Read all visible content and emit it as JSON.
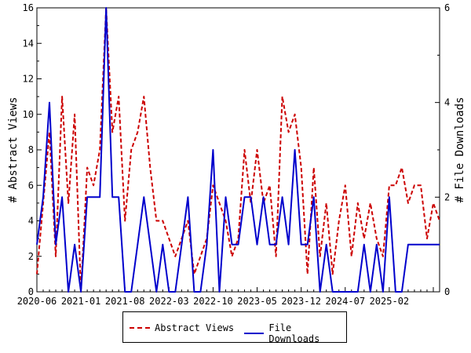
{
  "chart_data": {
    "type": "line",
    "x_tick_labels": [
      "2020-06",
      "2021-01",
      "2021-08",
      "2022-03",
      "2022-10",
      "2023-05",
      "2023-12",
      "2024-07",
      "2025-02"
    ],
    "x_count": 65,
    "y_left": {
      "label": "# Abstract Views",
      "lim": [
        0,
        16
      ],
      "ticks": [
        0,
        2,
        4,
        6,
        8,
        10,
        12,
        14,
        16
      ]
    },
    "y_right": {
      "label": "# File Downloads",
      "lim": [
        0,
        6
      ],
      "ticks": [
        0,
        2,
        4,
        6
      ]
    },
    "series": [
      {
        "name": "Abstract Views",
        "axis": "left",
        "color": "#cc0000",
        "dash": "dashed",
        "values": [
          1,
          5,
          9,
          2,
          11,
          5,
          10,
          0,
          7,
          6,
          8,
          16,
          9,
          11,
          4,
          8,
          9,
          11,
          7,
          4,
          4,
          3,
          2,
          3,
          4,
          1,
          2,
          3,
          6,
          5,
          4,
          2,
          3,
          8,
          5,
          8,
          5,
          6,
          2,
          11,
          9,
          10,
          7,
          1,
          7,
          2,
          5,
          1,
          4,
          6,
          2,
          5,
          3,
          5,
          3,
          2,
          6,
          6,
          7,
          5,
          6,
          6,
          3,
          5,
          4
        ]
      },
      {
        "name": "File Downloads",
        "axis": "right",
        "color": "#0000cc",
        "dash": "solid",
        "values": [
          1,
          2,
          4,
          1,
          2,
          0,
          1,
          0,
          2,
          2,
          2,
          6,
          2,
          2,
          0,
          0,
          1,
          2,
          1,
          0,
          1,
          0,
          0,
          1,
          2,
          0,
          0,
          1,
          3,
          0,
          2,
          1,
          1,
          2,
          2,
          1,
          2,
          1,
          1,
          2,
          1,
          3,
          1,
          1,
          2,
          0,
          1,
          0,
          0,
          0,
          0,
          0,
          1,
          0,
          1,
          0,
          2,
          0,
          0,
          1,
          1,
          1,
          1,
          1,
          1
        ]
      }
    ],
    "legend_position": "bottom-center",
    "grid": false
  }
}
